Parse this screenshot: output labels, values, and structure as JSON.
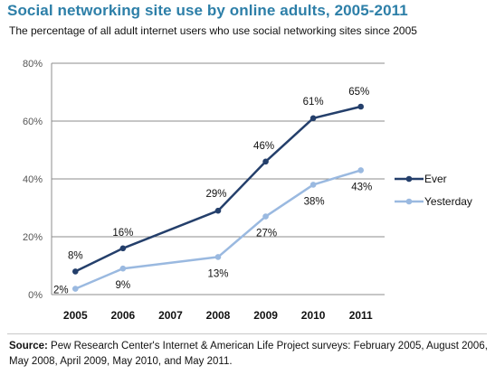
{
  "title": "Social networking site use by online adults, 2005-2011",
  "subtitle": "The percentage of all adult internet users who use social networking sites since 2005",
  "source": {
    "label": "Source:",
    "text": "Pew Research Center's Internet & American Life Project surveys: February 2005, August 2006, May 2008, April 2009, May 2010, and May 2011."
  },
  "colors": {
    "ever": "#243f6b",
    "yesterday": "#9ab9e0",
    "title": "#2d7fa8"
  },
  "chart_data": {
    "type": "line",
    "title": "Social networking site use by online adults, 2005-2011",
    "subtitle": "The percentage of all adult internet users who use social networking sites since 2005",
    "categories": [
      "2005",
      "2006",
      "2007",
      "2008",
      "2009",
      "2010",
      "2011"
    ],
    "y_ticks": [
      "0%",
      "20%",
      "40%",
      "60%",
      "80%"
    ],
    "ylim": [
      0,
      80
    ],
    "grid": true,
    "legend_position": "right",
    "series": [
      {
        "name": "Ever",
        "x": [
          "2005",
          "2006",
          "2008",
          "2009",
          "2010",
          "2011"
        ],
        "values": [
          8,
          16,
          29,
          46,
          61,
          65
        ],
        "labels": [
          "8%",
          "16%",
          "29%",
          "46%",
          "61%",
          "65%"
        ],
        "color": "#243f6b"
      },
      {
        "name": "Yesterday",
        "x": [
          "2005",
          "2006",
          "2008",
          "2009",
          "2010",
          "2011"
        ],
        "values": [
          2,
          9,
          13,
          27,
          38,
          43
        ],
        "labels": [
          "2%",
          "9%",
          "13%",
          "27%",
          "38%",
          "43%"
        ],
        "color": "#9ab9e0"
      }
    ]
  }
}
